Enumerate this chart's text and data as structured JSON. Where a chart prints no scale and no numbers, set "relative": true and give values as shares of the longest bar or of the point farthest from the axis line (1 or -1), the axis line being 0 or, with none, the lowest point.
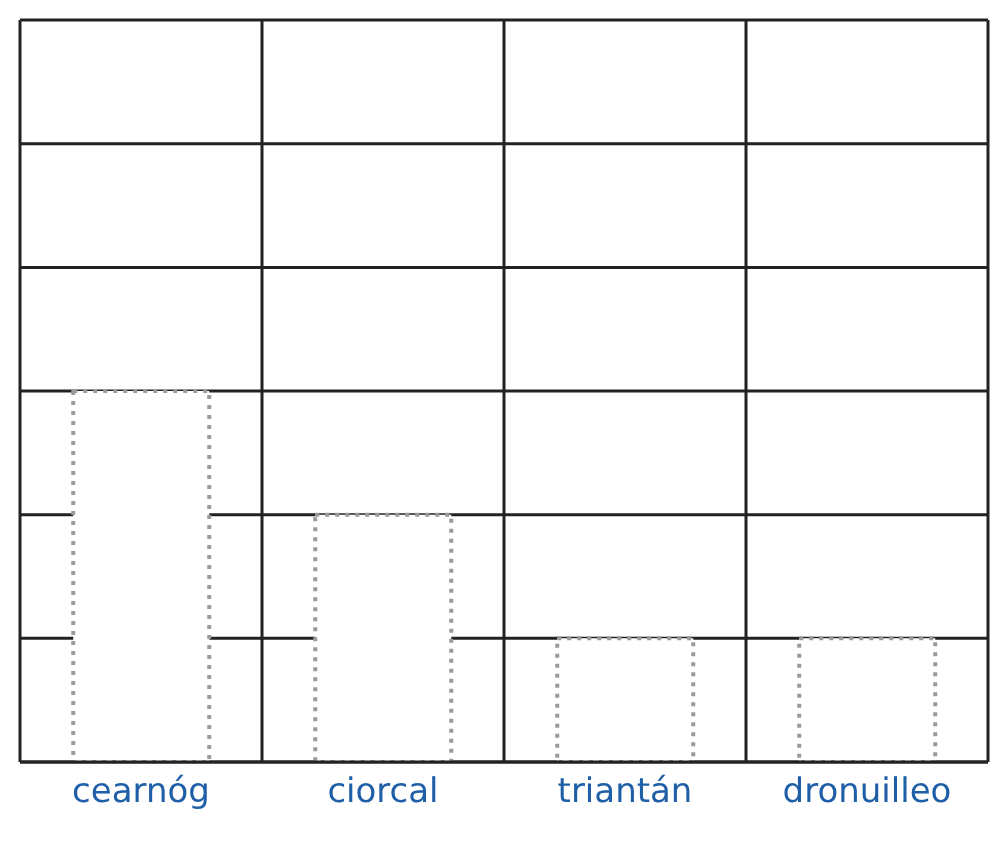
{
  "chart_data": {
    "type": "bar",
    "relative": true,
    "categories": [
      "cearnóg",
      "ciorcal",
      "triantán",
      "dronuilleo"
    ],
    "values": [
      1,
      0.6667,
      0.3333,
      0.3333
    ],
    "color": "#9a9a9a",
    "grid": true
  }
}
